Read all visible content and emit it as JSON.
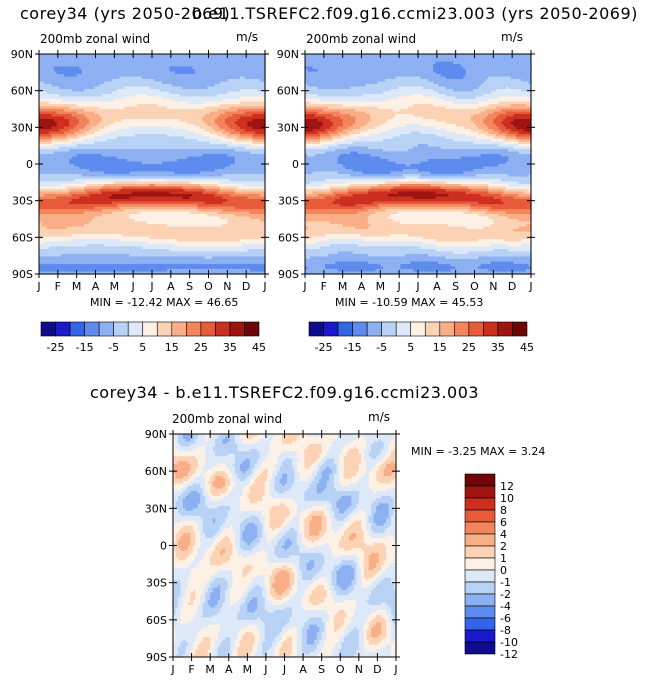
{
  "titles": {
    "left": "corey34 (yrs 2050-2069)",
    "right": "b.e11.TSREFC2.f09.g16.ccmi23.003 (yrs 2050-2069)",
    "diff": "corey34 - b.e11.TSREFC2.f09.g16.ccmi23.003"
  },
  "colors": {
    "main": [
      "#0d0d8c",
      "#1a1acc",
      "#3366e6",
      "#5e8cee",
      "#8cb0f2",
      "#b8d2f6",
      "#dde9f8",
      "#fdf1e6",
      "#fcd2b4",
      "#f9ae87",
      "#f3855d",
      "#e75a3a",
      "#cc2e20",
      "#9e1410",
      "#6e0606"
    ],
    "diff": [
      "#0d0d8c",
      "#1a1acc",
      "#3366e6",
      "#5e8cee",
      "#8cb0f2",
      "#b8d2f6",
      "#dde9f8",
      "#fdf1e6",
      "#fcd2b4",
      "#f9ae87",
      "#f3855d",
      "#e75a3a",
      "#cc2e20",
      "#9e1410",
      "#6e0606"
    ]
  },
  "chart_data": [
    {
      "type": "heatmap",
      "title": "200mb zonal wind",
      "units": "m/s",
      "x_ticks": [
        "J",
        "F",
        "M",
        "A",
        "M",
        "J",
        "J",
        "A",
        "S",
        "O",
        "N",
        "D",
        "J"
      ],
      "y_ticks": [
        "90N",
        "60N",
        "30N",
        "0",
        "30S",
        "60S",
        "90S"
      ],
      "y_range": [
        -90,
        90
      ],
      "stats": "MIN = -12.42 MAX =  46.65",
      "min": -12.42,
      "max": 46.65,
      "contour_levels": [
        -25,
        -20,
        -15,
        -10,
        -5,
        0,
        5,
        10,
        15,
        20,
        25,
        30,
        35,
        40,
        45
      ],
      "colorbar_labels": [
        "-25",
        "-15",
        "-5",
        "5",
        "15",
        "25",
        "35",
        "45"
      ]
    },
    {
      "type": "heatmap",
      "title": "200mb zonal wind",
      "units": "m/s",
      "x_ticks": [
        "J",
        "F",
        "M",
        "A",
        "M",
        "J",
        "J",
        "A",
        "S",
        "O",
        "N",
        "D",
        "J"
      ],
      "y_ticks": [
        "90N",
        "60N",
        "30N",
        "0",
        "30S",
        "60S",
        "90S"
      ],
      "y_range": [
        -90,
        90
      ],
      "stats": "MIN = -10.59 MAX =  45.53",
      "min": -10.59,
      "max": 45.53,
      "contour_levels": [
        -25,
        -20,
        -15,
        -10,
        -5,
        0,
        5,
        10,
        15,
        20,
        25,
        30,
        35,
        40,
        45
      ],
      "colorbar_labels": [
        "-25",
        "-15",
        "-5",
        "5",
        "15",
        "25",
        "35",
        "45"
      ]
    },
    {
      "type": "heatmap",
      "title": "200mb zonal wind",
      "units": "m/s",
      "x_ticks": [
        "J",
        "F",
        "M",
        "A",
        "M",
        "J",
        "J",
        "A",
        "S",
        "O",
        "N",
        "D",
        "J"
      ],
      "y_ticks": [
        "90N",
        "60N",
        "30N",
        "0",
        "30S",
        "60S",
        "90S"
      ],
      "y_range": [
        -90,
        90
      ],
      "stats": "MIN =  -3.25 MAX =    3.24",
      "min": -3.25,
      "max": 3.24,
      "contour_levels": [
        -12,
        -10,
        -8,
        -6,
        -4,
        -2,
        -1,
        0,
        1,
        2,
        4,
        6,
        8,
        10,
        12
      ],
      "colorbar_labels": [
        "12",
        "10",
        "8",
        "6",
        "4",
        "2",
        "1",
        "0",
        "-1",
        "-2",
        "-4",
        "-6",
        "-8",
        "-10",
        "-12"
      ]
    }
  ]
}
